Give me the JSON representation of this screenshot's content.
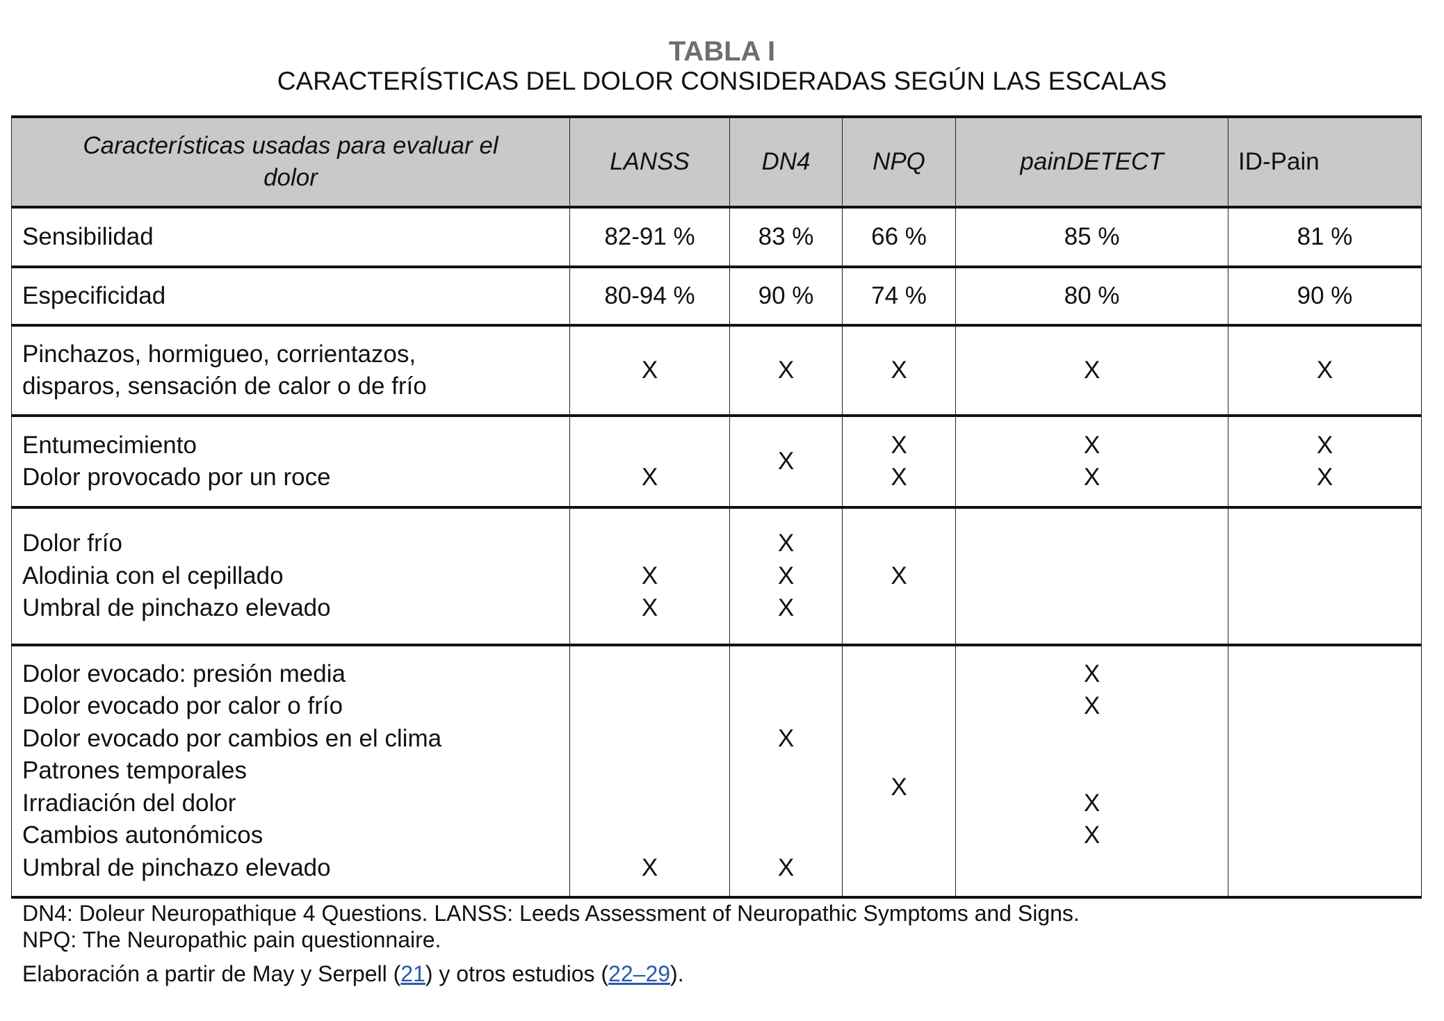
{
  "title": "TABLA I",
  "subtitle": "CARACTERÍSTICAS DEL DOLOR CONSIDERADAS SEGÚN LAS ESCALAS",
  "table": {
    "headers": [
      "Características usadas para evaluar el dolor",
      "LANSS",
      "DN4",
      "NPQ",
      "painDETECT",
      "ID-Pain"
    ],
    "rows": [
      {
        "labels": [
          "Sensibilidad"
        ],
        "cells": [
          [
            "82-91 %"
          ],
          [
            "83 %"
          ],
          [
            "66 %"
          ],
          [
            "85 %"
          ],
          [
            "81 %"
          ]
        ]
      },
      {
        "labels": [
          "Especificidad"
        ],
        "cells": [
          [
            "80-94 %"
          ],
          [
            "90 %"
          ],
          [
            "74 %"
          ],
          [
            "80 %"
          ],
          [
            "90 %"
          ]
        ]
      },
      {
        "labels": [
          "Pinchazos, hormigueo, corrientazos,",
          "disparos, sensación de calor o de frío"
        ],
        "cells": [
          [
            "X"
          ],
          [
            "X"
          ],
          [
            "X"
          ],
          [
            "X"
          ],
          [
            "X"
          ]
        ]
      },
      {
        "labels": [
          "Entumecimiento",
          "Dolor provocado por un roce"
        ],
        "cells": [
          [
            "",
            "X"
          ],
          [
            "X"
          ],
          [
            "X",
            "X"
          ],
          [
            "X",
            "X"
          ],
          [
            "X",
            "X"
          ]
        ]
      },
      {
        "labels": [
          "Dolor frío",
          "Alodinia con el cepillado",
          "Umbral de pinchazo elevado"
        ],
        "cells": [
          [
            "",
            "X",
            "X"
          ],
          [
            "X",
            "X",
            "X"
          ],
          [
            "X"
          ],
          [],
          []
        ]
      },
      {
        "labels": [
          "Dolor evocado: presión media",
          "Dolor evocado por calor o frío",
          "Dolor evocado por cambios en el clima",
          "Patrones temporales",
          "Irradiación del dolor",
          "Cambios autonómicos",
          "Umbral de pinchazo elevado"
        ],
        "cells": [
          [
            "",
            "",
            "",
            "",
            "",
            "",
            "X"
          ],
          [
            "",
            "",
            "X",
            "",
            "",
            "",
            "X"
          ],
          [
            "X"
          ],
          [
            "X",
            "X",
            "",
            "",
            "X",
            "X",
            ""
          ],
          []
        ]
      }
    ]
  },
  "footnotes": {
    "abbrev1": "DN4: Doleur Neuropathique 4 Questions. LANSS: Leeds Assessment of Neuropathic Symptoms and Signs.",
    "abbrev2": "NPQ: The Neuropathic pain questionnaire.",
    "source_pre": "Elaboración a partir de May y Serpell (",
    "ref1": "21",
    "source_mid": ") y otros estudios (",
    "ref2": "22–29",
    "source_post": ")."
  },
  "colors": {
    "header_bg": "#c9c9c9",
    "title": "#6e6e6e",
    "link": "#2a5aa8"
  }
}
